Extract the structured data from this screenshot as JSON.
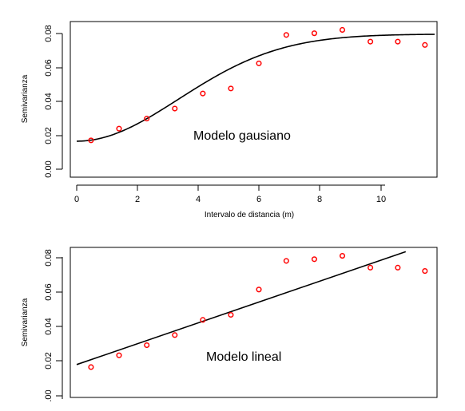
{
  "colors": {
    "points": "#ff0000",
    "curve": "#000000",
    "background": "#ffffff"
  },
  "chart_data": [
    {
      "type": "scatter",
      "title": "",
      "annotation": "Modelo gausiano",
      "xlabel": "Intervalo de distancia (m)",
      "ylabel": "Semivarianza",
      "xlim": [
        -0.5,
        11.8
      ],
      "ylim": [
        -0.004,
        0.089
      ],
      "xticks": [
        "0",
        "2",
        "4",
        "6",
        "8",
        "10"
      ],
      "yticks": [
        "0.00",
        "0.02",
        "0.04",
        "0.06",
        "0.08"
      ],
      "grid": false,
      "legend": "none",
      "series": [
        {
          "x": [
            0.47,
            1.39,
            2.3,
            3.22,
            4.14,
            5.06,
            5.98,
            6.88,
            7.8,
            8.72,
            9.64,
            10.54,
            11.43
          ],
          "y": [
            0.018,
            0.025,
            0.031,
            0.037,
            0.046,
            0.049,
            0.064,
            0.081,
            0.082,
            0.084,
            0.077,
            0.077,
            0.075
          ]
        }
      ],
      "model": {
        "type": "gaussian",
        "nugget": 0.0175,
        "sill": 0.0815,
        "range": 8.2
      }
    },
    {
      "type": "scatter",
      "title": "",
      "annotation": "Modelo lineal",
      "xlabel": "",
      "ylabel": "Semivarianza",
      "xlim": [
        -0.5,
        11.8
      ],
      "ylim": [
        0.0,
        0.089
      ],
      "xticks": [],
      "yticks": [
        ".00",
        "0.02",
        "0.04",
        "0.06",
        "0.08"
      ],
      "grid": false,
      "legend": "none",
      "series": [
        {
          "x": [
            0.47,
            1.39,
            2.3,
            3.22,
            4.14,
            5.06,
            5.98,
            6.88,
            7.8,
            8.72,
            9.64,
            10.54,
            11.43
          ],
          "y": [
            0.018,
            0.025,
            0.031,
            0.037,
            0.046,
            0.049,
            0.064,
            0.081,
            0.082,
            0.084,
            0.077,
            0.077,
            0.075
          ]
        }
      ],
      "model": {
        "type": "linear",
        "intercept": 0.0195,
        "slope": 0.0062
      }
    }
  ]
}
